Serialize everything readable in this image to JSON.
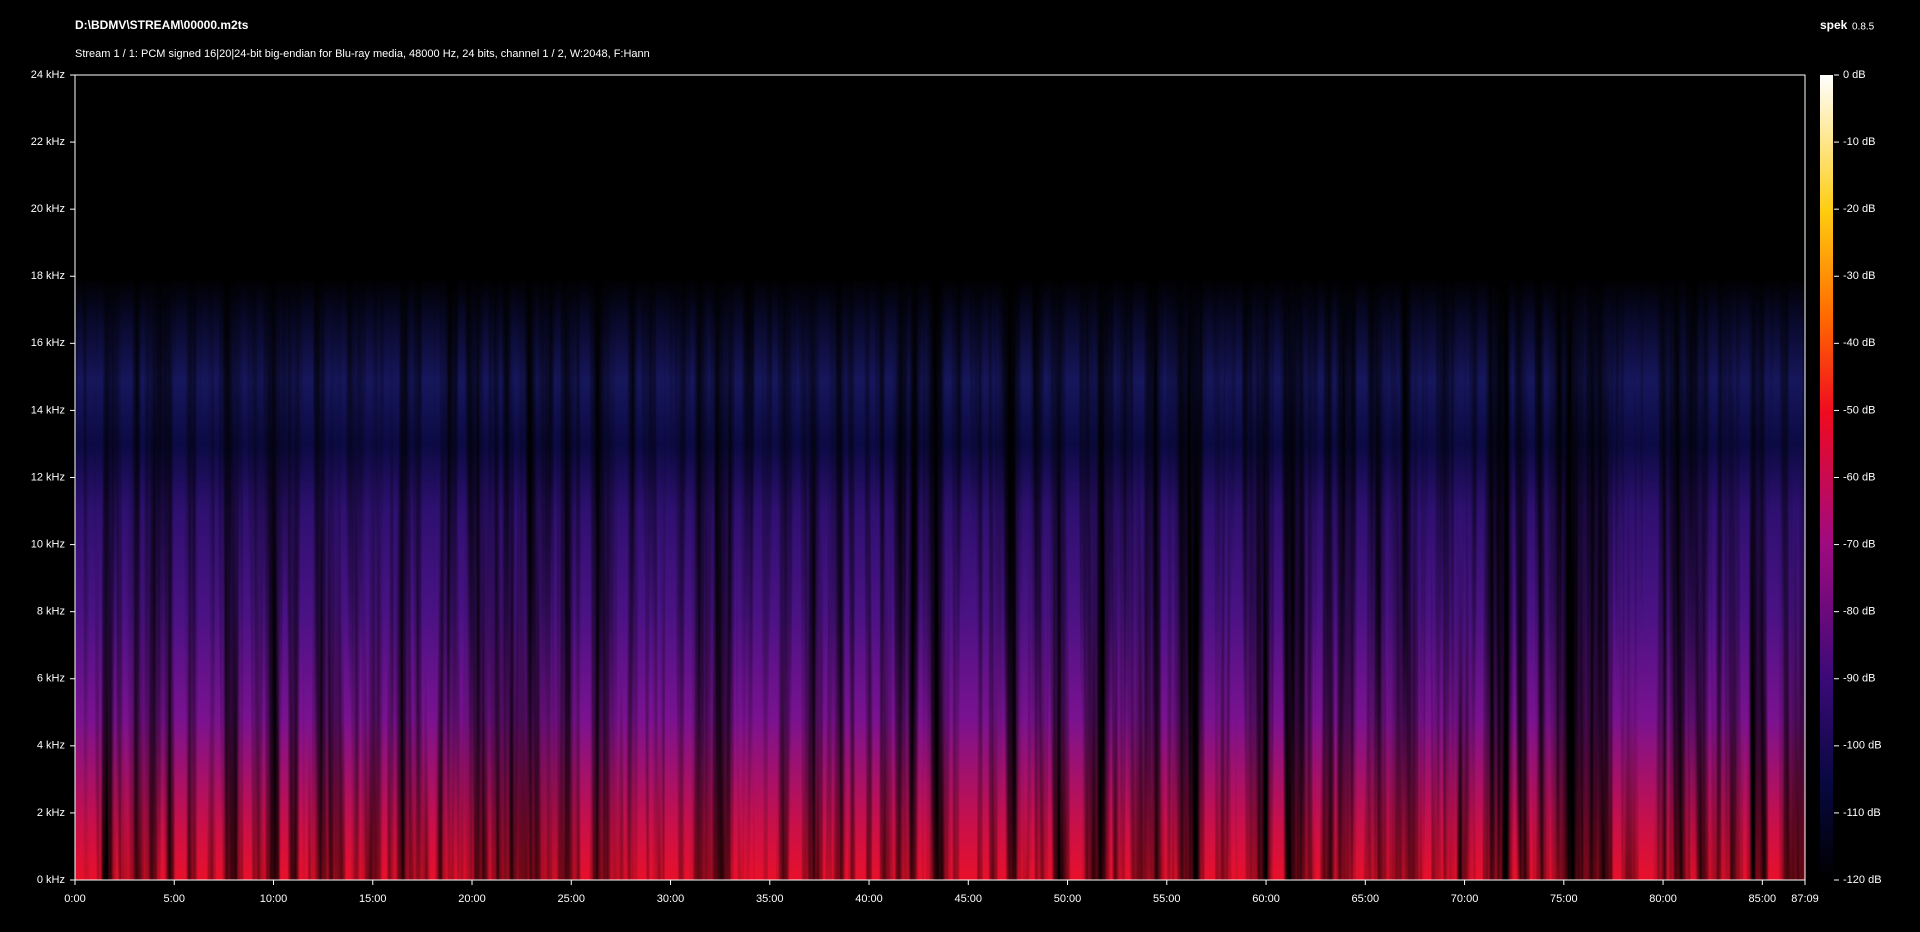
{
  "chart_data": {
    "type": "spectrogram",
    "title": "D:\\BDMV\\STREAM\\00000.m2ts",
    "subtitle": "Stream 1 / 1: PCM signed 16|20|24-bit big-endian for Blu-ray media, 48000 Hz, 24 bits, channel 1 / 2, W:2048, F:Hann",
    "app_name": "spek",
    "app_version": "0.8.5",
    "xlim": [
      0,
      87.15
    ],
    "xticks": [
      {
        "value": 0,
        "label": "0:00"
      },
      {
        "value": 5,
        "label": "5:00"
      },
      {
        "value": 10,
        "label": "10:00"
      },
      {
        "value": 15,
        "label": "15:00"
      },
      {
        "value": 20,
        "label": "20:00"
      },
      {
        "value": 25,
        "label": "25:00"
      },
      {
        "value": 30,
        "label": "30:00"
      },
      {
        "value": 35,
        "label": "35:00"
      },
      {
        "value": 40,
        "label": "40:00"
      },
      {
        "value": 45,
        "label": "45:00"
      },
      {
        "value": 50,
        "label": "50:00"
      },
      {
        "value": 55,
        "label": "55:00"
      },
      {
        "value": 60,
        "label": "60:00"
      },
      {
        "value": 65,
        "label": "65:00"
      },
      {
        "value": 70,
        "label": "70:00"
      },
      {
        "value": 75,
        "label": "75:00"
      },
      {
        "value": 80,
        "label": "80:00"
      },
      {
        "value": 85,
        "label": "85:00"
      },
      {
        "value": 87.15,
        "label": "87:09"
      }
    ],
    "ylim": [
      0,
      24
    ],
    "yticks": [
      {
        "value": 0,
        "label": "0 kHz"
      },
      {
        "value": 2,
        "label": "2 kHz"
      },
      {
        "value": 4,
        "label": "4 kHz"
      },
      {
        "value": 6,
        "label": "6 kHz"
      },
      {
        "value": 8,
        "label": "8 kHz"
      },
      {
        "value": 10,
        "label": "10 kHz"
      },
      {
        "value": 12,
        "label": "12 kHz"
      },
      {
        "value": 14,
        "label": "14 kHz"
      },
      {
        "value": 16,
        "label": "16 kHz"
      },
      {
        "value": 18,
        "label": "18 kHz"
      },
      {
        "value": 20,
        "label": "20 kHz"
      },
      {
        "value": 22,
        "label": "22 kHz"
      },
      {
        "value": 24,
        "label": "24 kHz"
      }
    ],
    "colorbar": {
      "lim": [
        -120,
        0
      ],
      "ticks": [
        {
          "value": 0,
          "label": "0 dB"
        },
        {
          "value": -10,
          "label": "-10 dB"
        },
        {
          "value": -20,
          "label": "-20 dB"
        },
        {
          "value": -30,
          "label": "-30 dB"
        },
        {
          "value": -40,
          "label": "-40 dB"
        },
        {
          "value": -50,
          "label": "-50 dB"
        },
        {
          "value": -60,
          "label": "-60 dB"
        },
        {
          "value": -70,
          "label": "-70 dB"
        },
        {
          "value": -80,
          "label": "-80 dB"
        },
        {
          "value": -90,
          "label": "-90 dB"
        },
        {
          "value": -100,
          "label": "-100 dB"
        },
        {
          "value": -110,
          "label": "-110 dB"
        },
        {
          "value": -120,
          "label": "-120 dB"
        }
      ]
    }
  }
}
